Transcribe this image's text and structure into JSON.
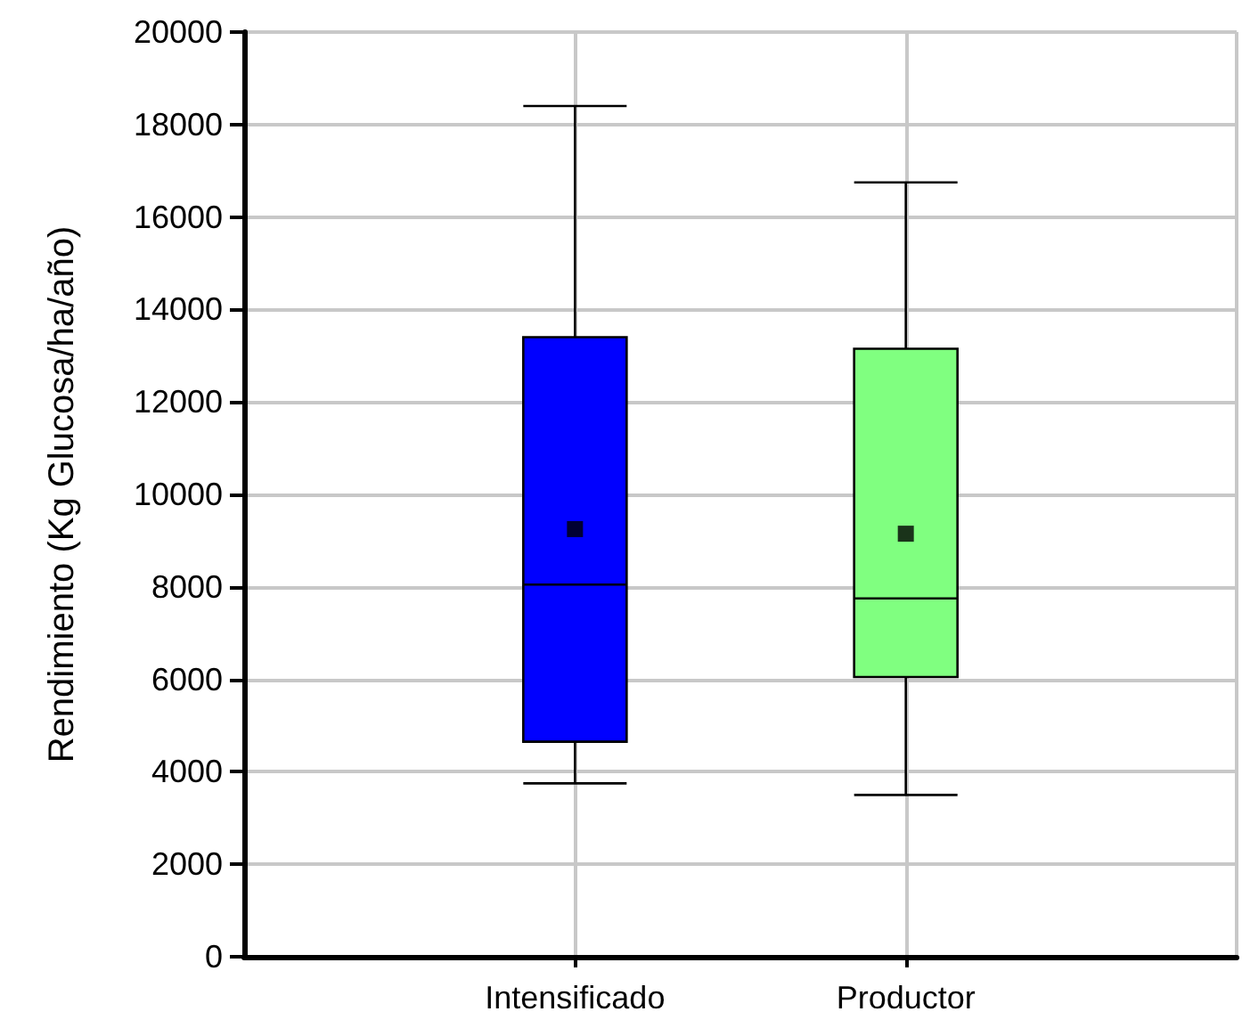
{
  "chart_data": {
    "type": "box",
    "ylabel": "Rendimiento (Kg Glucosa/ha/año)",
    "categories": [
      "Intensificado",
      "Productor"
    ],
    "boxes": [
      {
        "low": 3750,
        "q1": 4650,
        "median": 8050,
        "q3": 13400,
        "high": 18400,
        "mean": 9250
      },
      {
        "low": 3500,
        "q1": 6050,
        "median": 7750,
        "q3": 13150,
        "high": 16750,
        "mean": 9150
      }
    ],
    "colors": [
      "#0000ff",
      "#80ff80"
    ],
    "ylim": [
      0,
      20000
    ],
    "yticks": [
      0,
      2000,
      4000,
      6000,
      8000,
      10000,
      12000,
      14000,
      16000,
      18000,
      20000
    ],
    "grid": true,
    "marker": "square"
  }
}
